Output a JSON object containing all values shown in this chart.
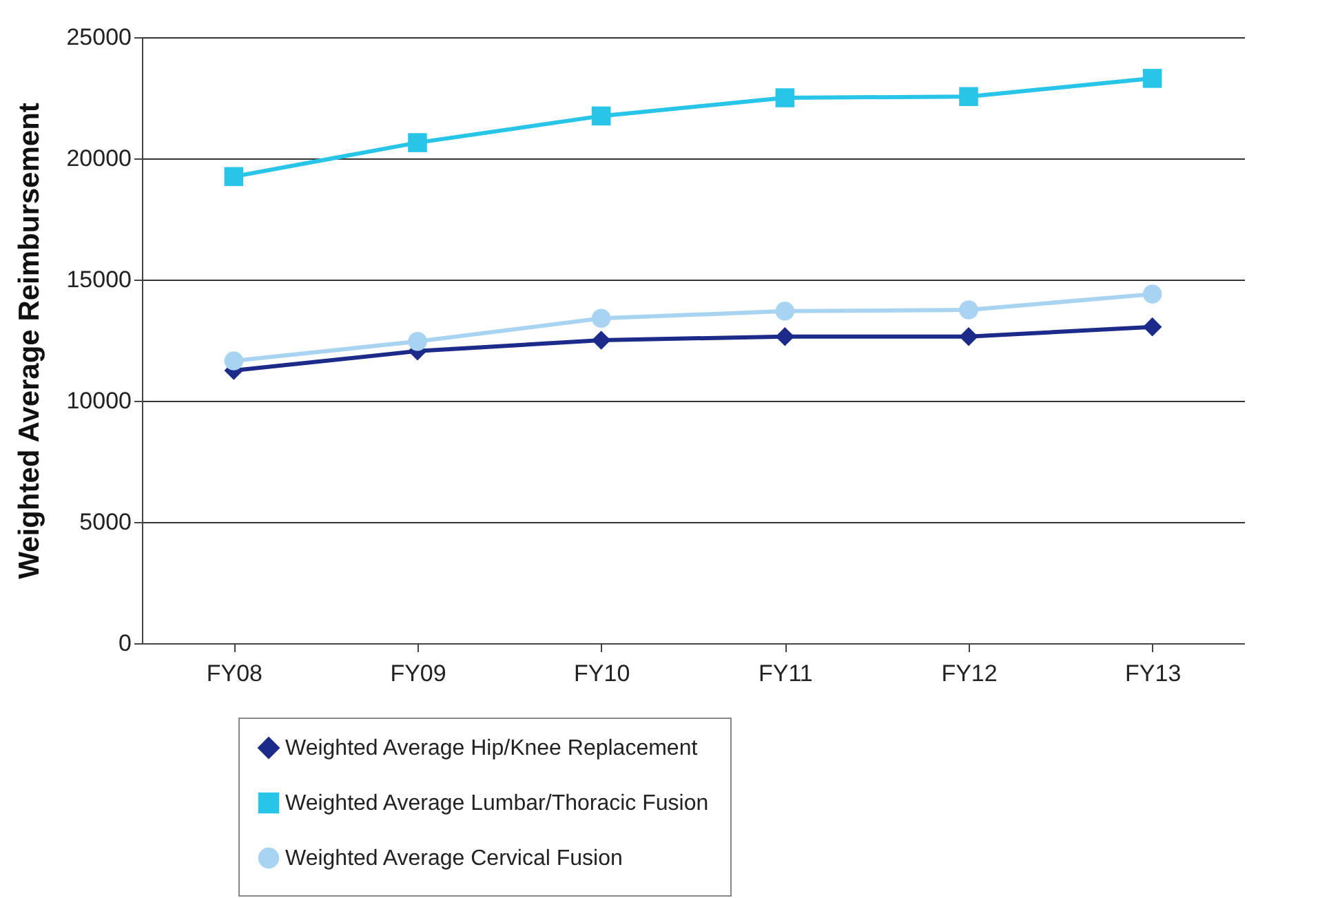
{
  "chart_data": {
    "type": "line",
    "ylabel": "Weighted Average Reimbursement",
    "categories": [
      "FY08",
      "FY09",
      "FY10",
      "FY11",
      "FY12",
      "FY13"
    ],
    "series": [
      {
        "name": "Weighted Average Hip/Knee Replacement",
        "color": "#1c2a8a",
        "marker": "diamond",
        "values": [
          11250,
          12050,
          12500,
          12650,
          12650,
          13050
        ]
      },
      {
        "name": "Weighted Average Lumbar/Thoracic Fusion",
        "color": "#29c5e8",
        "marker": "square",
        "values": [
          19250,
          20650,
          21750,
          22500,
          22550,
          23300
        ]
      },
      {
        "name": "Weighted Average Cervical Fusion",
        "color": "#a8d4f2",
        "marker": "circle",
        "values": [
          11650,
          12450,
          13400,
          13700,
          13750,
          14400
        ]
      }
    ],
    "ylim": [
      0,
      25000
    ],
    "yticks": [
      0,
      5000,
      10000,
      15000,
      20000,
      25000
    ],
    "grid": "y",
    "legend": "bottom"
  }
}
